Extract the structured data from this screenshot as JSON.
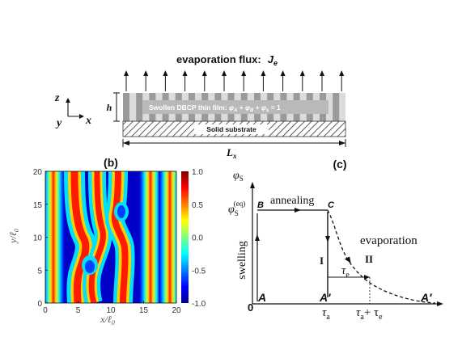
{
  "panel_a": {
    "flux_label": "evaporation flux:",
    "flux_symbol": "J",
    "flux_subscript": "e",
    "film_label": "Swollen DBCP thin film: φA + φB + φs = 1",
    "film_text": "Swollen DBCP thin film: ",
    "phi": "φ",
    "sub_A": "A",
    "sub_B": "B",
    "sub_s": "s",
    "plus": " + ",
    "equals_one": " = 1",
    "substrate_label": "Solid substrate",
    "height_label": "h",
    "width_label": "L",
    "width_subscript": "x",
    "axis_z": "z",
    "axis_y": "y",
    "axis_x": "x"
  },
  "panel_b": {
    "label": "(b)",
    "x_ticks": [
      "0",
      "5",
      "10",
      "15",
      "20"
    ],
    "y_ticks": [
      "20",
      "15",
      "10",
      "5",
      "0"
    ],
    "xlabel": "x/ℓ",
    "xlabel_sub": "0",
    "ylabel": "y/ℓ",
    "ylabel_sub": "0",
    "colorbar_ticks": [
      "1.0",
      "0.5",
      "0.0",
      "-0.5",
      "-1.0"
    ],
    "colormap": [
      "#00008f",
      "#0000ff",
      "#00ffff",
      "#ffff00",
      "#ff0000",
      "#800000"
    ]
  },
  "panel_c": {
    "label": "(c)",
    "y_axis": "φ",
    "y_axis_sub": "S",
    "phi_eq": "φ",
    "phi_eq_sub": "S",
    "phi_eq_sup": "(eq)",
    "point_B": "B",
    "point_C": "C",
    "point_A": "A",
    "point_A_prime_1": "A′",
    "point_A_prime_2": "A′",
    "origin": "0",
    "annealing": "annealing",
    "evaporation": "evaporation",
    "swelling": "swelling",
    "stage_I": "I",
    "stage_II": "II",
    "tau_e": "τ",
    "tau_e_sub": "e",
    "tau_a": "τ",
    "tau_a_sub": "a",
    "tau_sum": "τ",
    "tau_sum_sub_a": "a",
    "tau_sum_plus": "+ τ",
    "tau_sum_sub_e": "e"
  }
}
